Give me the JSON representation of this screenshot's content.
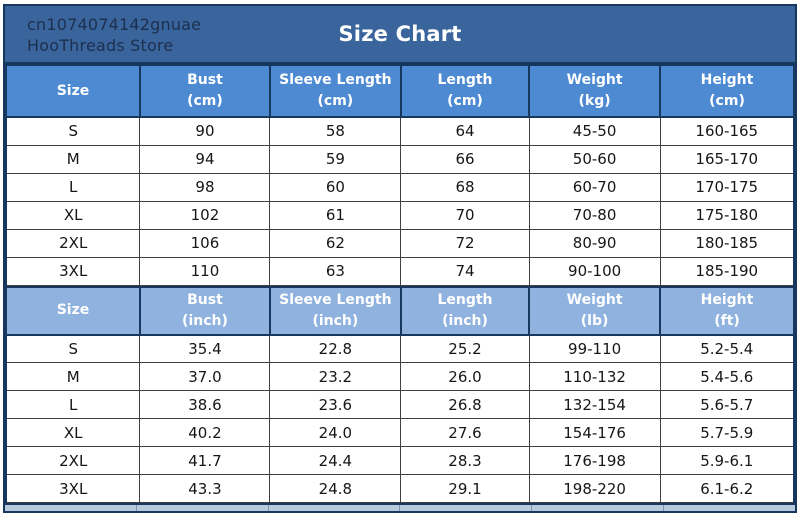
{
  "header": {
    "store_line1": "cn1074074142gnuae",
    "store_line2": "HooThreads Store",
    "title": "Size Chart"
  },
  "colors": {
    "banner-bg": "#3a659c",
    "store-text": "#1c2f4e",
    "title-text": "#ffffff",
    "header1-bg": "#4e8ad2",
    "header2-bg": "#8fb2de",
    "border-navy": "#17375e",
    "data-border": "#3f3f3f",
    "data-text": "#161616",
    "strip-bg": "#b9c9de"
  },
  "chart_data": [
    {
      "type": "table",
      "title": "Size Chart (metric)",
      "columns": [
        {
          "label": "Size",
          "unit": ""
        },
        {
          "label": "Bust",
          "unit": "(cm)"
        },
        {
          "label": "Sleeve Length",
          "unit": "(cm)"
        },
        {
          "label": "Length",
          "unit": "(cm)"
        },
        {
          "label": "Weight",
          "unit": "(kg)"
        },
        {
          "label": "Height",
          "unit": "(cm)"
        }
      ],
      "rows": [
        [
          "S",
          "90",
          "58",
          "64",
          "45-50",
          "160-165"
        ],
        [
          "M",
          "94",
          "59",
          "66",
          "50-60",
          "165-170"
        ],
        [
          "L",
          "98",
          "60",
          "68",
          "60-70",
          "170-175"
        ],
        [
          "XL",
          "102",
          "61",
          "70",
          "70-80",
          "175-180"
        ],
        [
          "2XL",
          "106",
          "62",
          "72",
          "80-90",
          "180-185"
        ],
        [
          "3XL",
          "110",
          "63",
          "74",
          "90-100",
          "185-190"
        ]
      ]
    },
    {
      "type": "table",
      "title": "Size Chart (imperial)",
      "columns": [
        {
          "label": "Size",
          "unit": ""
        },
        {
          "label": "Bust",
          "unit": "(inch)"
        },
        {
          "label": "Sleeve Length",
          "unit": "(inch)"
        },
        {
          "label": "Length",
          "unit": "(inch)"
        },
        {
          "label": "Weight",
          "unit": "(lb)"
        },
        {
          "label": "Height",
          "unit": "(ft)"
        }
      ],
      "rows": [
        [
          "S",
          "35.4",
          "22.8",
          "25.2",
          "99-110",
          "5.2-5.4"
        ],
        [
          "M",
          "37.0",
          "23.2",
          "26.0",
          "110-132",
          "5.4-5.6"
        ],
        [
          "L",
          "38.6",
          "23.6",
          "26.8",
          "132-154",
          "5.6-5.7"
        ],
        [
          "XL",
          "40.2",
          "24.0",
          "27.6",
          "154-176",
          "5.7-5.9"
        ],
        [
          "2XL",
          "41.7",
          "24.4",
          "28.3",
          "176-198",
          "5.9-6.1"
        ],
        [
          "3XL",
          "43.3",
          "24.8",
          "29.1",
          "198-220",
          "6.1-6.2"
        ]
      ]
    }
  ]
}
